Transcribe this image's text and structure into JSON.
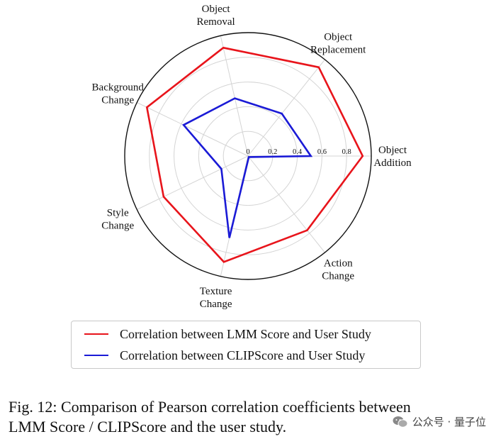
{
  "chart_data": {
    "type": "radar",
    "axes": [
      "Object Addition",
      "Object Replacement",
      "Object Removal",
      "Background Change",
      "Style Change",
      "Texture Change",
      "Action Change"
    ],
    "axis_label_lines": [
      [
        "Object",
        "Addition"
      ],
      [
        "Object",
        "Replacement"
      ],
      [
        "Object",
        "Removal"
      ],
      [
        "Background",
        "Change"
      ],
      [
        "Style",
        "Change"
      ],
      [
        "Texture",
        "Change"
      ],
      [
        "Action",
        "Change"
      ]
    ],
    "rlim": [
      0,
      1
    ],
    "radial_ticks": [
      0,
      0.2,
      0.4,
      0.6,
      0.8
    ],
    "radial_tick_labels": [
      "0",
      "0.2",
      "0.4",
      "0.6",
      "0.8"
    ],
    "grid": true,
    "series": [
      {
        "name": "Correlation between LMM Score and User Study",
        "color": "#e8141b",
        "values": [
          0.93,
          0.92,
          0.9,
          0.91,
          0.76,
          0.88,
          0.77
        ]
      },
      {
        "name": "Correlation between CLIPScore and User Study",
        "color": "#1a1ad6",
        "values": [
          0.51,
          0.44,
          0.48,
          0.58,
          0.24,
          0.68,
          0.01
        ]
      }
    ]
  },
  "legend": {
    "items": [
      {
        "label": "Correlation between LMM Score and User Study",
        "color": "#e8141b"
      },
      {
        "label": "Correlation between CLIPScore and User Study",
        "color": "#1a1ad6"
      }
    ]
  },
  "caption": {
    "line1": "Fig. 12: Comparison of Pearson correlation coefficients between",
    "line2": "LMM Score / CLIPScore and the user study."
  },
  "watermark": {
    "text": "公众号 · 量子位",
    "icon": "wechat-icon"
  }
}
